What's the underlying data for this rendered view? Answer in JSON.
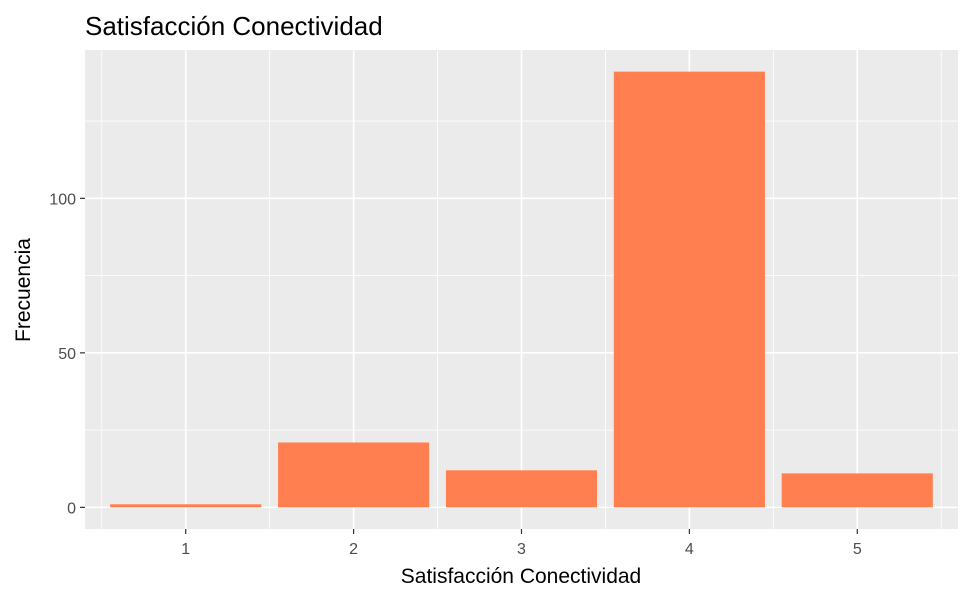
{
  "chart_data": {
    "type": "bar",
    "title": "Satisfacción Conectividad",
    "xlabel": "Satisfacción Conectividad",
    "ylabel": "Frecuencia",
    "categories": [
      "1",
      "2",
      "3",
      "4",
      "5"
    ],
    "values": [
      1,
      21,
      12,
      141,
      11
    ],
    "ylim": [
      -7,
      148
    ],
    "yticks": [
      0,
      50,
      100
    ],
    "yticks_labels": [
      "0",
      "50",
      "100"
    ],
    "bar_color": "#ff7f50",
    "panel_color": "#ebebeb",
    "grid_color": "#ffffff",
    "grid": true,
    "legend": "none"
  }
}
